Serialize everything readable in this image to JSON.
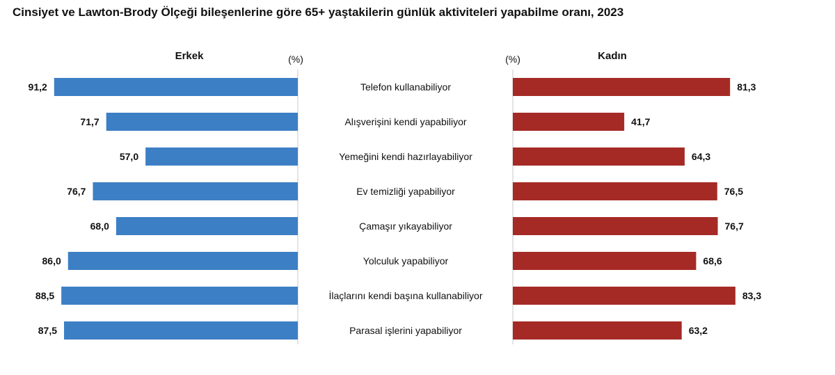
{
  "chart_data": {
    "type": "bar",
    "title": "Cinsiyet ve Lawton-Brody Ölçeği bileşenlerine göre 65+ yaştakilerin günlük aktiviteleri yapabilme oranı, 2023",
    "unit": "(%)",
    "categories": [
      "Telefon kullanabiliyor",
      "Alışverişini kendi yapabiliyor",
      "Yemeğini kendi hazırlayabiliyor",
      "Ev temizliği yapabiliyor",
      "Çamaşır yıkayabiliyor",
      "Yolculuk yapabiliyor",
      "İlaçlarını kendi başına kullanabiliyor",
      "Parasal işlerini yapabiliyor"
    ],
    "series": [
      {
        "name": "Erkek",
        "color": "#3d7fc4",
        "values": [
          91.2,
          71.7,
          57.0,
          76.7,
          68.0,
          86.0,
          88.5,
          87.5
        ],
        "labels": [
          "91,2",
          "71,7",
          "57,0",
          "76,7",
          "68,0",
          "86,0",
          "88,5",
          "87,5"
        ]
      },
      {
        "name": "Kadın",
        "color": "#a52a26",
        "values": [
          81.3,
          41.7,
          64.3,
          76.5,
          76.7,
          68.6,
          83.3,
          63.2
        ],
        "labels": [
          "81,3",
          "41,7",
          "64,3",
          "76,5",
          "76,7",
          "68,6",
          "83,3",
          "63,2"
        ]
      }
    ],
    "xlim": [
      0,
      100
    ],
    "grid": false,
    "legend": "none"
  }
}
